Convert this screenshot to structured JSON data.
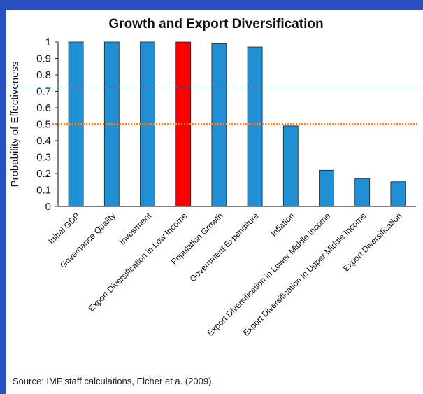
{
  "slide": {
    "source_note": "Source: IMF staff calculations, Eicher et a. (2009)."
  },
  "chart_data": {
    "type": "bar",
    "title": "Growth and Export Diversification",
    "ylabel": "Probability of Effectiveness",
    "xlabel": "",
    "ylim": [
      0,
      1
    ],
    "yticks": [
      0,
      0.1,
      0.2,
      0.3,
      0.4,
      0.5,
      0.6,
      0.7,
      0.8,
      0.9,
      1
    ],
    "categories": [
      "Initial GDP",
      "Governance Quality",
      "Investment",
      "Export Diversification in Low Income",
      "Population Growth",
      "Government Expenditure",
      "Inflation",
      "Export Diversification in Lower Middle Income",
      "Export Diversification in Upper Middle Income",
      "Export Diversification"
    ],
    "values": [
      1.0,
      1.0,
      1.0,
      1.0,
      0.99,
      0.97,
      0.49,
      0.22,
      0.17,
      0.15
    ],
    "highlight_index": 3,
    "bar_color": "#1f8fd6",
    "highlight_color": "#ff0000",
    "threshold": 0.5,
    "threshold_color": "#ff7f27",
    "grid": false,
    "legend": "none"
  }
}
